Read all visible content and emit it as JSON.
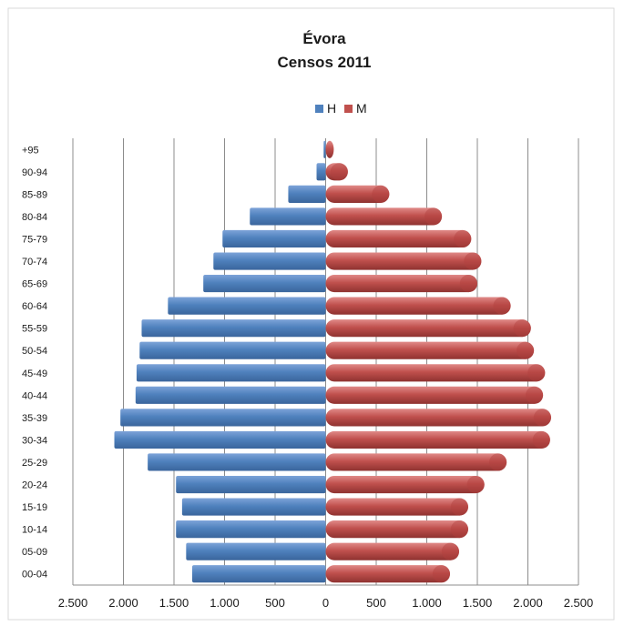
{
  "chart_data": {
    "type": "bar",
    "orientation": "horizontal",
    "title": "Évora",
    "subtitle": "Censos 2011",
    "categories": [
      "00-04",
      "05-09",
      "10-14",
      "15-19",
      "20-24",
      "25-29",
      "30-34",
      "35-39",
      "40-44",
      "45-49",
      "50-54",
      "55-59",
      "60-64",
      "65-69",
      "70-74",
      "75-79",
      "80-84",
      "85-89",
      "90-94",
      "+95"
    ],
    "series": [
      {
        "name": "H",
        "color": "#4f81bd",
        "direction": "left",
        "values": [
          1320,
          1380,
          1480,
          1420,
          1480,
          1760,
          2090,
          2030,
          1880,
          1870,
          1840,
          1820,
          1560,
          1210,
          1110,
          1020,
          750,
          370,
          90,
          20
        ]
      },
      {
        "name": "M",
        "color": "#c0504d",
        "direction": "right",
        "values": [
          1230,
          1320,
          1410,
          1410,
          1570,
          1790,
          2220,
          2230,
          2150,
          2170,
          2060,
          2030,
          1830,
          1500,
          1540,
          1440,
          1150,
          630,
          220,
          80
        ]
      }
    ],
    "x_ticks": [
      "2.500",
      "2.000",
      "1.500",
      "1.000",
      "500",
      "0",
      "500",
      "1.000",
      "1.500",
      "2.000",
      "2.500"
    ],
    "xlim": [
      -2500,
      2500
    ],
    "legend_position": "top-center",
    "grid": "vertical"
  }
}
